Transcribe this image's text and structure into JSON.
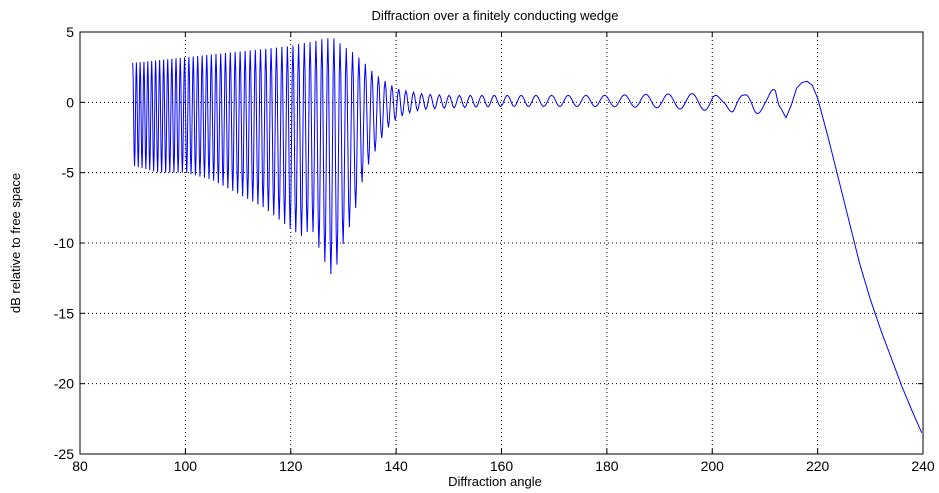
{
  "chart_data": {
    "type": "line",
    "title": "Diffraction over a finitely conducting wedge",
    "xlabel": "Diffraction angle",
    "ylabel": "dB relative to free space",
    "xlim": [
      80,
      240
    ],
    "ylim": [
      -25,
      5
    ],
    "x_ticks": [
      80,
      100,
      120,
      140,
      160,
      180,
      200,
      220,
      240
    ],
    "y_ticks": [
      5,
      0,
      -5,
      -10,
      -15,
      -20,
      -25
    ],
    "x_tick_labels": [
      "80",
      "100",
      "120",
      "140",
      "160",
      "180",
      "200",
      "220",
      "240"
    ],
    "y_tick_labels": [
      "5",
      "0",
      "-5",
      "-10",
      "-15",
      "-20",
      "-25"
    ],
    "grid": true,
    "grid_style": "dotted",
    "line_color": "#0000ff",
    "series": [
      {
        "x": [
          90,
          95,
          100,
          105,
          110,
          115,
          120,
          122,
          124,
          126,
          128,
          130,
          132,
          134,
          136,
          138,
          140,
          142,
          145,
          150,
          160,
          170,
          180,
          190,
          195,
          200,
          202,
          204,
          206,
          208,
          210,
          212,
          213,
          214,
          215,
          216,
          217,
          218,
          219,
          220,
          222,
          224,
          226,
          228,
          230,
          232,
          234,
          236,
          238,
          240
        ],
        "y_upper": [
          2.8,
          3.0,
          3.2,
          3.4,
          3.6,
          3.8,
          4.0,
          4.2,
          4.3,
          4.5,
          4.6,
          4.0,
          3.5,
          2.8,
          2.0,
          1.5,
          1.0,
          0.8,
          0.6,
          0.5,
          0.5,
          0.5,
          0.5,
          0.6,
          0.6,
          0.7,
          0.2,
          0.8,
          0.5,
          0.9,
          0.6,
          1.0,
          -0.4,
          -1.1,
          -0.2,
          1.0,
          1.4,
          1.5,
          1.2,
          0.3,
          -2.5,
          -5.5,
          -8.5,
          -11.5,
          -14.0,
          -16.2,
          -18.2,
          -20.2,
          -22.0,
          -23.7
        ],
        "y_lower": [
          -4.5,
          -5.0,
          -5.0,
          -5.5,
          -6.5,
          -7.5,
          -9.0,
          -9.5,
          -9.0,
          -11.0,
          -12.5,
          -10.0,
          -8.0,
          -5.0,
          -3.5,
          -2.0,
          -1.2,
          -0.8,
          -0.5,
          -0.4,
          -0.3,
          -0.3,
          -0.3,
          -0.4,
          -0.5,
          -0.6,
          -0.2,
          -0.8,
          -0.5,
          -0.9,
          -0.6,
          -1.2,
          -0.4,
          -1.1,
          -0.2,
          1.0,
          1.4,
          1.5,
          1.2,
          0.3,
          -2.5,
          -5.5,
          -8.5,
          -11.5,
          -14.0,
          -16.2,
          -18.2,
          -20.2,
          -22.0,
          -23.7
        ]
      }
    ]
  }
}
